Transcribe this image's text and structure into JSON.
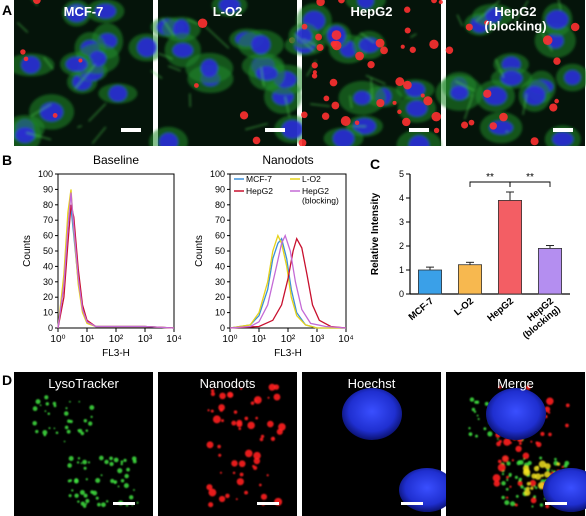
{
  "panel_labels": {
    "a": "A",
    "b": "B",
    "c": "C",
    "d": "D"
  },
  "row_a": {
    "images": [
      {
        "label": "MCF-7"
      },
      {
        "label": "L-O2"
      },
      {
        "label": "HepG2"
      },
      {
        "label": "HepG2\n(blocking)"
      }
    ]
  },
  "row_b": {
    "baseline": {
      "title": "Baseline",
      "ylabel": "Counts",
      "xlabel": "FL3-H",
      "x_ticks": [
        "10⁰",
        "10¹",
        "10²",
        "10³",
        "10⁴"
      ],
      "y_ticks": [
        "0",
        "10",
        "20",
        "30",
        "40",
        "50",
        "60",
        "70",
        "80",
        "90",
        "100"
      ]
    },
    "nanodots": {
      "title": "Nanodots",
      "ylabel": "Counts",
      "xlabel": "FL3-H",
      "x_ticks": [
        "10⁰",
        "10¹",
        "10²",
        "10³",
        "10⁴"
      ],
      "y_ticks": [
        "0",
        "10",
        "20",
        "30",
        "40",
        "50",
        "60",
        "70",
        "80",
        "90",
        "100"
      ],
      "legend": [
        {
          "name": "MCF-7",
          "color": "#3a8fd9"
        },
        {
          "name": "L-O2",
          "color": "#e6d21a"
        },
        {
          "name": "HepG2",
          "color": "#c8102e"
        },
        {
          "name": "HepG2\n(blocking)",
          "color": "#c46ad6"
        }
      ]
    }
  },
  "chart_data": [
    {
      "type": "line",
      "title": "Baseline",
      "xlabel": "FL3-H",
      "ylabel": "Counts",
      "x_scale": "log",
      "xlim": [
        1,
        10000
      ],
      "ylim": [
        0,
        100
      ],
      "series": [
        {
          "color": "#3a8fd9",
          "x": [
            1,
            1.6,
            2.2,
            2.8,
            3.5,
            5,
            7,
            10,
            20,
            100,
            1000,
            10000
          ],
          "values": [
            0,
            30,
            68,
            78,
            60,
            30,
            12,
            4,
            1,
            1,
            1,
            0
          ]
        },
        {
          "color": "#e6d21a",
          "x": [
            1,
            1.6,
            2.2,
            2.8,
            3.5,
            5,
            7,
            10,
            20,
            100,
            1000,
            10000
          ],
          "values": [
            0,
            35,
            75,
            90,
            64,
            28,
            10,
            3,
            1,
            1,
            1,
            0
          ]
        },
        {
          "color": "#c8102e",
          "x": [
            1,
            1.6,
            2.2,
            2.8,
            3.5,
            5,
            7,
            10,
            20,
            100,
            1000,
            10000
          ],
          "values": [
            0,
            20,
            55,
            80,
            72,
            38,
            15,
            5,
            1,
            1,
            1,
            0
          ]
        },
        {
          "color": "#c46ad6",
          "x": [
            1,
            1.6,
            2.2,
            2.8,
            3.5,
            5,
            7,
            10,
            20,
            100,
            1000,
            10000
          ],
          "values": [
            0,
            28,
            65,
            88,
            66,
            32,
            12,
            4,
            1,
            1,
            1,
            0
          ]
        }
      ]
    },
    {
      "type": "line",
      "title": "Nanodots",
      "xlabel": "FL3-H",
      "ylabel": "Counts",
      "x_scale": "log",
      "xlim": [
        1,
        10000
      ],
      "ylim": [
        0,
        100
      ],
      "legend_position": "top",
      "series": [
        {
          "name": "MCF-7",
          "color": "#3a8fd9",
          "x": [
            1,
            5,
            10,
            20,
            30,
            45,
            60,
            90,
            130,
            200,
            400,
            1000,
            10000
          ],
          "values": [
            0,
            2,
            8,
            25,
            45,
            55,
            58,
            45,
            25,
            10,
            2,
            0,
            0
          ]
        },
        {
          "name": "L-O2",
          "color": "#e6d21a",
          "x": [
            1,
            5,
            10,
            20,
            30,
            45,
            60,
            90,
            130,
            200,
            400,
            1000,
            10000
          ],
          "values": [
            0,
            2,
            10,
            30,
            50,
            60,
            55,
            40,
            20,
            8,
            2,
            0,
            0
          ]
        },
        {
          "name": "HepG2",
          "color": "#c8102e",
          "x": [
            1,
            10,
            30,
            60,
            100,
            150,
            200,
            300,
            450,
            700,
            1200,
            3000,
            10000
          ],
          "values": [
            0,
            1,
            5,
            15,
            32,
            50,
            58,
            52,
            35,
            15,
            5,
            1,
            0
          ]
        },
        {
          "name": "HepG2\n(blocking)",
          "color": "#c46ad6",
          "x": [
            1,
            5,
            10,
            20,
            40,
            60,
            80,
            120,
            180,
            300,
            600,
            2000,
            10000
          ],
          "values": [
            0,
            1,
            4,
            15,
            40,
            55,
            60,
            50,
            30,
            12,
            3,
            1,
            0
          ]
        }
      ]
    },
    {
      "type": "bar",
      "categories": [
        "MCF-7",
        "L-O2",
        "HepG2",
        "HepG2\n(blocking)"
      ],
      "values": [
        1.0,
        1.22,
        3.9,
        1.9
      ],
      "errors": [
        0.12,
        0.1,
        0.35,
        0.12
      ],
      "colors": [
        "#3aa0e8",
        "#f7b84f",
        "#f35e64",
        "#b48ef0"
      ],
      "ylabel": "Relative Intensity",
      "ylim": [
        0,
        5
      ],
      "y_ticks": [
        "0",
        "1",
        "2",
        "3",
        "4",
        "5"
      ],
      "significance": [
        {
          "from": 1,
          "to": 2,
          "label": "**"
        },
        {
          "from": 2,
          "to": 3,
          "label": "**"
        }
      ]
    }
  ],
  "row_d": {
    "images": [
      {
        "label": "LysoTracker"
      },
      {
        "label": "Nanodots"
      },
      {
        "label": "Hoechst"
      },
      {
        "label": "Merge"
      }
    ]
  }
}
